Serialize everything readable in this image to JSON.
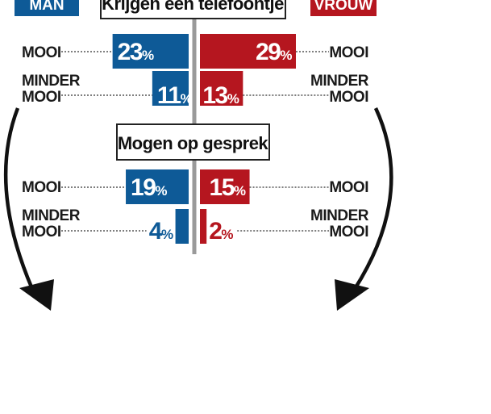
{
  "colors": {
    "man": "#0e5a97",
    "vrouw": "#b5161f",
    "axis": "#9a9a9a",
    "text": "#1a1a1a"
  },
  "legend": {
    "man": "MAN",
    "vrouw": "VROUW"
  },
  "chart_data": {
    "type": "bar",
    "layout": "butterfly",
    "series": [
      {
        "name": "MAN",
        "values": [
          23,
          11,
          19,
          4
        ]
      },
      {
        "name": "VROUW",
        "values": [
          29,
          13,
          15,
          2
        ]
      }
    ],
    "groups": [
      {
        "title": "Krijgen een telefoontje",
        "rows": [
          {
            "label": "MOOI",
            "man": 23,
            "vrouw": 29
          },
          {
            "label": "MINDER MOOI",
            "man": 11,
            "vrouw": 13
          }
        ]
      },
      {
        "title": "Mogen op gesprek",
        "rows": [
          {
            "label": "MOOI",
            "man": 19,
            "vrouw": 15
          },
          {
            "label": "MINDER MOOI",
            "man": 4,
            "vrouw": 2
          }
        ]
      }
    ],
    "unit": "%",
    "xlim": [
      0,
      29
    ]
  }
}
